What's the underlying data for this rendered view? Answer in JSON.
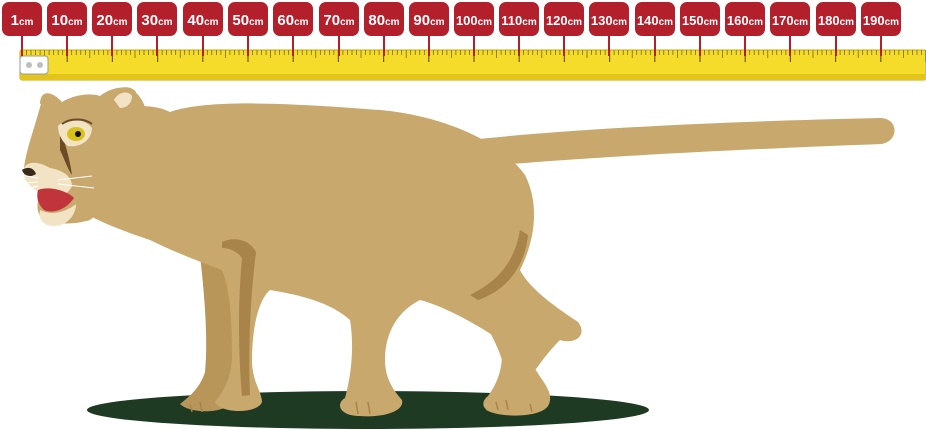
{
  "ruler": {
    "unit": "cm",
    "colors": {
      "tag": "#b3202c",
      "tape": "#f5dc2a",
      "tape_edge": "#c9a70f",
      "marks": "#6b5a10"
    },
    "labels": [
      {
        "num": "1",
        "unit": "cm"
      },
      {
        "num": "10",
        "unit": "cm"
      },
      {
        "num": "20",
        "unit": "cm"
      },
      {
        "num": "30",
        "unit": "cm"
      },
      {
        "num": "40",
        "unit": "cm"
      },
      {
        "num": "50",
        "unit": "cm"
      },
      {
        "num": "60",
        "unit": "cm"
      },
      {
        "num": "70",
        "unit": "cm"
      },
      {
        "num": "80",
        "unit": "cm"
      },
      {
        "num": "90",
        "unit": "cm"
      },
      {
        "num": "100",
        "unit": "cm"
      },
      {
        "num": "110",
        "unit": "cm"
      },
      {
        "num": "120",
        "unit": "cm"
      },
      {
        "num": "130",
        "unit": "cm"
      },
      {
        "num": "140",
        "unit": "cm"
      },
      {
        "num": "150",
        "unit": "cm"
      },
      {
        "num": "160",
        "unit": "cm"
      },
      {
        "num": "170",
        "unit": "cm"
      },
      {
        "num": "180",
        "unit": "cm"
      },
      {
        "num": "190",
        "unit": "cm"
      }
    ]
  },
  "illustration": {
    "subject": "cougar-icon",
    "colors": {
      "body": "#c8a86c",
      "shade": "#a8834a",
      "ground": "#1f3a23",
      "eye": "#d8c21a",
      "mouth": "#c2343c"
    }
  }
}
